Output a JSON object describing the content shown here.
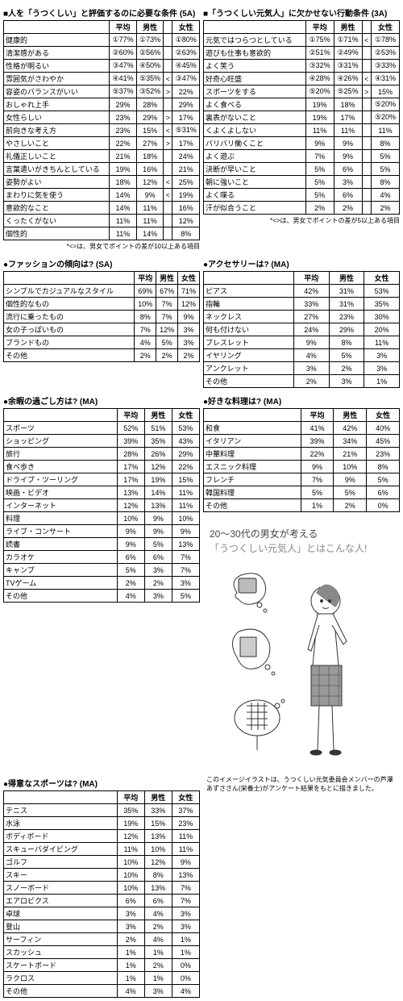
{
  "top": {
    "left_title": "人を「うつくしい」と評価するのに必要な条件 (5A)",
    "right_title": "「うつくしい元気人」に欠かせない行動条件 (3A)",
    "headers": [
      "平均",
      "男性",
      "",
      "女性"
    ],
    "headers3": [
      "平均",
      "男性",
      "女性"
    ],
    "left_rows": [
      [
        "健康的",
        "①77%",
        "①73%",
        "",
        "①80%"
      ],
      [
        "清潔感がある",
        "②60%",
        "②56%",
        "",
        "②63%"
      ],
      [
        "性格が明るい",
        "③47%",
        "④50%",
        "",
        "④45%"
      ],
      [
        "雰囲気がさわやか",
        "④41%",
        "⑤35%",
        "<",
        "③47%"
      ],
      [
        "容姿のバランスがいい",
        "⑤37%",
        "③52%",
        ">",
        "22%"
      ],
      [
        "おしゃれ上手",
        "29%",
        "28%",
        "",
        "29%"
      ],
      [
        "女性らしい",
        "23%",
        "29%",
        ">",
        "17%"
      ],
      [
        "前向きな考え方",
        "23%",
        "15%",
        "<",
        "⑤31%"
      ],
      [
        "やさしいこと",
        "22%",
        "27%",
        ">",
        "17%"
      ],
      [
        "礼儀正しいこと",
        "21%",
        "18%",
        "",
        "24%"
      ],
      [
        "言葉遣いがきちんとしている",
        "19%",
        "16%",
        "",
        "21%"
      ],
      [
        "姿勢がよい",
        "18%",
        "12%",
        "<",
        "25%"
      ],
      [
        "まわりに気を使う",
        "14%",
        "9%",
        "<",
        "19%"
      ],
      [
        "意欲的なこと",
        "14%",
        "11%",
        "",
        "16%"
      ],
      [
        "くったくがない",
        "11%",
        "11%",
        "",
        "12%"
      ],
      [
        "個性的",
        "11%",
        "14%",
        "",
        "8%"
      ]
    ],
    "right_rows": [
      [
        "元気ではつらつとしている",
        "①75%",
        "①71%",
        "<",
        "①78%"
      ],
      [
        "遊びも仕事も意欲的",
        "②51%",
        "②49%",
        "",
        "②53%"
      ],
      [
        "よく笑う",
        "③32%",
        "③31%",
        "",
        "③33%"
      ],
      [
        "好奇心旺盛",
        "④28%",
        "④26%",
        "<",
        "④31%"
      ],
      [
        "スポーツをする",
        "⑤20%",
        "⑤25%",
        ">",
        "15%"
      ],
      [
        "よく食べる",
        "19%",
        "18%",
        "",
        "⑤20%"
      ],
      [
        "裏表がないこと",
        "19%",
        "17%",
        "",
        "⑤20%"
      ],
      [
        "くよくよしない",
        "11%",
        "11%",
        "",
        "11%"
      ],
      [
        "バリバリ働くこと",
        "9%",
        "9%",
        "",
        "8%"
      ],
      [
        "よく遊ぶ",
        "7%",
        "9%",
        "",
        "5%"
      ],
      [
        "決断が早いこと",
        "5%",
        "6%",
        "",
        "5%"
      ],
      [
        "朝に強いこと",
        "5%",
        "3%",
        "",
        "8%"
      ],
      [
        "よく喋る",
        "5%",
        "6%",
        "",
        "4%"
      ],
      [
        "汗が似合うこと",
        "2%",
        "2%",
        "",
        "2%"
      ]
    ],
    "note_left": "*<>は、男女でポイントの差が10以上ある項目",
    "note_right": "*<>は、男女でポイントの差が5以上ある項目"
  },
  "fashion": {
    "title": "ファッションの傾向は? (SA)",
    "rows": [
      [
        "シンプルでカジュアルなスタイル",
        "69%",
        "67%",
        "71%"
      ],
      [
        "個性的なもの",
        "10%",
        "7%",
        "12%"
      ],
      [
        "流行に乗ったもの",
        "8%",
        "7%",
        "9%"
      ],
      [
        "女の子っぽいもの",
        "7%",
        "12%",
        "3%"
      ],
      [
        "ブランドもの",
        "4%",
        "5%",
        "3%"
      ],
      [
        "その他",
        "2%",
        "2%",
        "2%"
      ]
    ]
  },
  "accessory": {
    "title": "アクセサリーは? (MA)",
    "rows": [
      [
        "ピアス",
        "42%",
        "31%",
        "53%"
      ],
      [
        "指輪",
        "33%",
        "31%",
        "35%"
      ],
      [
        "ネックレス",
        "27%",
        "23%",
        "30%"
      ],
      [
        "何も付けない",
        "24%",
        "29%",
        "20%"
      ],
      [
        "ブレスレット",
        "9%",
        "8%",
        "11%"
      ],
      [
        "イヤリング",
        "4%",
        "5%",
        "3%"
      ],
      [
        "アンクレット",
        "3%",
        "2%",
        "3%"
      ],
      [
        "その他",
        "2%",
        "3%",
        "1%"
      ]
    ]
  },
  "leisure": {
    "title": "余暇の過ごし方は? (MA)",
    "rows": [
      [
        "スポーツ",
        "52%",
        "51%",
        "53%"
      ],
      [
        "ショッピング",
        "39%",
        "35%",
        "43%"
      ],
      [
        "旅行",
        "28%",
        "26%",
        "29%"
      ],
      [
        "食べ歩き",
        "17%",
        "12%",
        "22%"
      ],
      [
        "ドライブ・ツーリング",
        "17%",
        "19%",
        "15%"
      ],
      [
        "映画・ビデオ",
        "13%",
        "14%",
        "11%"
      ],
      [
        "インターネット",
        "12%",
        "13%",
        "11%"
      ],
      [
        "料理",
        "10%",
        "9%",
        "10%"
      ],
      [
        "ライブ・コンサート",
        "9%",
        "9%",
        "9%"
      ],
      [
        "読書",
        "9%",
        "5%",
        "13%"
      ],
      [
        "カラオケ",
        "6%",
        "6%",
        "7%"
      ],
      [
        "キャンプ",
        "5%",
        "3%",
        "7%"
      ],
      [
        "TVゲーム",
        "2%",
        "2%",
        "3%"
      ],
      [
        "その他",
        "4%",
        "3%",
        "5%"
      ]
    ]
  },
  "food": {
    "title": "好きな料理は? (MA)",
    "rows": [
      [
        "和食",
        "41%",
        "42%",
        "40%"
      ],
      [
        "イタリアン",
        "39%",
        "34%",
        "45%"
      ],
      [
        "中華料理",
        "22%",
        "21%",
        "23%"
      ],
      [
        "エスニック料理",
        "9%",
        "10%",
        "8%"
      ],
      [
        "フレンチ",
        "7%",
        "9%",
        "5%"
      ],
      [
        "韓国料理",
        "5%",
        "5%",
        "6%"
      ],
      [
        "その他",
        "1%",
        "2%",
        "0%"
      ]
    ]
  },
  "sports": {
    "title": "得意なスポーツは? (MA)",
    "rows": [
      [
        "テニス",
        "35%",
        "33%",
        "37%"
      ],
      [
        "水泳",
        "19%",
        "15%",
        "23%"
      ],
      [
        "ボディボード",
        "12%",
        "13%",
        "11%"
      ],
      [
        "スキューバダイビング",
        "11%",
        "10%",
        "11%"
      ],
      [
        "ゴルフ",
        "10%",
        "12%",
        "9%"
      ],
      [
        "スキー",
        "10%",
        "8%",
        "13%"
      ],
      [
        "スノーボード",
        "10%",
        "13%",
        "7%"
      ],
      [
        "エアロビクス",
        "6%",
        "6%",
        "7%"
      ],
      [
        "卓球",
        "3%",
        "4%",
        "3%"
      ],
      [
        "登山",
        "3%",
        "2%",
        "3%"
      ],
      [
        "サーフィン",
        "2%",
        "4%",
        "1%"
      ],
      [
        "スカッシュ",
        "1%",
        "1%",
        "1%"
      ],
      [
        "スケートボード",
        "1%",
        "2%",
        "0%"
      ],
      [
        "ラクロス",
        "1%",
        "1%",
        "0%"
      ],
      [
        "その他",
        "4%",
        "3%",
        "4%"
      ]
    ]
  },
  "callout": {
    "l1": "20〜30代の男女が考える",
    "l2": "「うつくしい元気人」とはこんな人!"
  },
  "caption": "このイメージイラストは、うつくしい元気委員会メンバーの芦澤あずささん(栄養士)がアンケート結果をもとに描きました。"
}
